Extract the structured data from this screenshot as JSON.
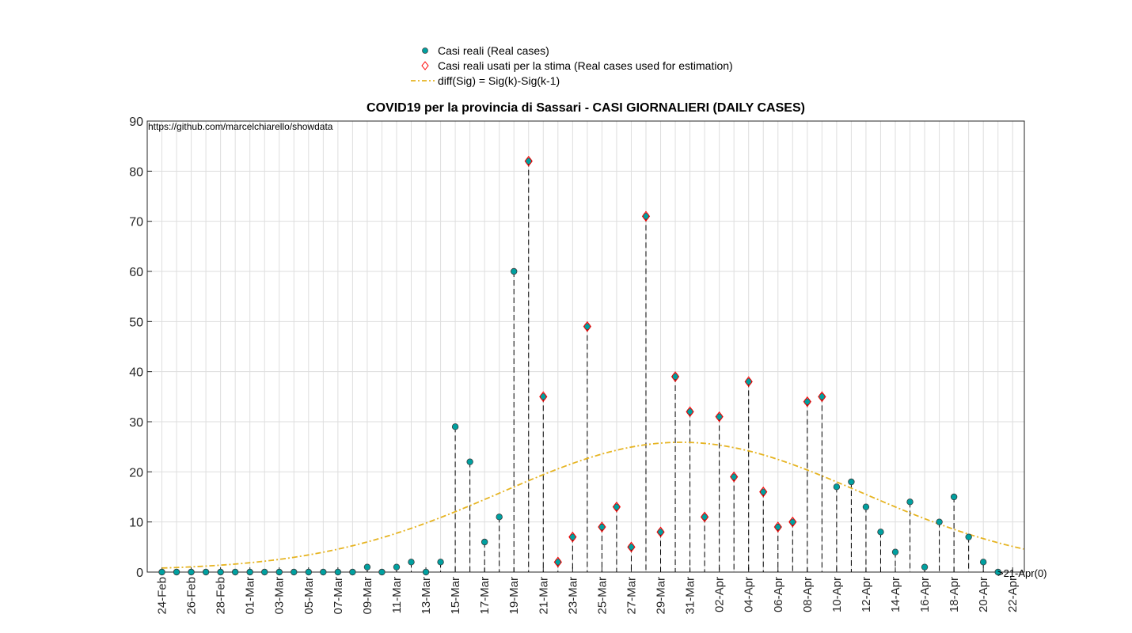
{
  "chart_data": {
    "type": "scatter",
    "title": "COVID19 per la provincia di Sassari - CASI GIORNALIERI (DAILY CASES)",
    "annotation": "https://github.com/marcelchiarello/showdata",
    "end_annotation": ">21-Apr(0)",
    "ylim": [
      0,
      90
    ],
    "yticks": [
      0,
      10,
      20,
      30,
      40,
      50,
      60,
      70,
      80,
      90
    ],
    "x_start": "24-Feb",
    "x_end": "22-Apr",
    "xtick_labels": [
      "24-Feb",
      "26-Feb",
      "28-Feb",
      "01-Mar",
      "03-Mar",
      "05-Mar",
      "07-Mar",
      "09-Mar",
      "11-Mar",
      "13-Mar",
      "15-Mar",
      "17-Mar",
      "19-Mar",
      "21-Mar",
      "23-Mar",
      "25-Mar",
      "27-Mar",
      "29-Mar",
      "31-Mar",
      "02-Apr",
      "04-Apr",
      "06-Apr",
      "08-Apr",
      "10-Apr",
      "12-Apr",
      "14-Apr",
      "16-Apr",
      "18-Apr",
      "20-Apr",
      "22-Apr"
    ],
    "grid": true,
    "legend_position": "top",
    "series": [
      {
        "name": "Casi reali (Real cases)",
        "kind": "points_with_stems",
        "color": "#00a0a0",
        "values": [
          0,
          0,
          0,
          0,
          0,
          0,
          0,
          0,
          0,
          0,
          0,
          0,
          0,
          0,
          1,
          0,
          1,
          2,
          0,
          2,
          29,
          22,
          6,
          11,
          60,
          82,
          35,
          2,
          7,
          49,
          9,
          13,
          5,
          71,
          8,
          39,
          32,
          11,
          31,
          19,
          38,
          16,
          9,
          10,
          34,
          35,
          17,
          18,
          13,
          8,
          4,
          14,
          1,
          10,
          15,
          7,
          2,
          0
        ]
      },
      {
        "name": "Casi reali usati per la stima (Real cases used for estimation)",
        "kind": "diamond_markers",
        "color": "#ff0000",
        "start_day_index": 25,
        "values": [
          82,
          35,
          2,
          7,
          49,
          9,
          13,
          5,
          71,
          8,
          39,
          32,
          11,
          31,
          19,
          38,
          16,
          9,
          10,
          34,
          35
        ]
      },
      {
        "name": "diff(Sig) = Sig(k)-Sig(k-1)",
        "kind": "dashdot_line",
        "color": "#e6b422",
        "peak_value": 25.9,
        "peak_day_index": 35.4,
        "sigma_days": 12.3,
        "baseline": 0.4
      }
    ]
  }
}
